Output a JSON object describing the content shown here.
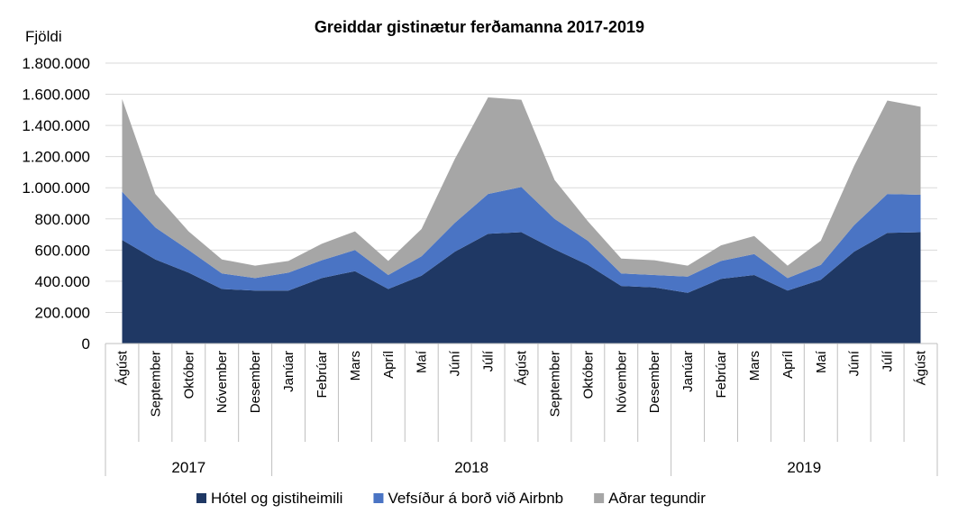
{
  "chart_data": {
    "type": "area",
    "stacked": true,
    "title": "Greiddar gistinætur ferðamanna 2017-2019",
    "ylabel": "Fjöldi",
    "xlabel": "",
    "ylim": [
      0,
      1800000
    ],
    "y_ticks": [
      {
        "value": 0,
        "label": "0"
      },
      {
        "value": 200000,
        "label": "200.000"
      },
      {
        "value": 400000,
        "label": "400.000"
      },
      {
        "value": 600000,
        "label": "600.000"
      },
      {
        "value": 800000,
        "label": "800.000"
      },
      {
        "value": 1000000,
        "label": "1.000.000"
      },
      {
        "value": 1200000,
        "label": "1.200.000"
      },
      {
        "value": 1400000,
        "label": "1.400.000"
      },
      {
        "value": 1600000,
        "label": "1.600.000"
      },
      {
        "value": 1800000,
        "label": "1.800.000"
      }
    ],
    "grid": true,
    "legend_position": "bottom",
    "categories": [
      "Ágúst",
      "September",
      "Október",
      "Nóvember",
      "Desember",
      "Janúar",
      "Febrúar",
      "Mars",
      "Apríl",
      "Maí",
      "Júní",
      "Júlí",
      "Ágúst",
      "September",
      "Október",
      "Nóvember",
      "Desember",
      "Janúar",
      "Febrúar",
      "Mars",
      "Apríl",
      "Maí",
      "Júní",
      "Júlí",
      "Ágúst"
    ],
    "year_groups": [
      {
        "label": "2017",
        "start": 0,
        "end": 4
      },
      {
        "label": "2018",
        "start": 5,
        "end": 16
      },
      {
        "label": "2019",
        "start": 17,
        "end": 24
      }
    ],
    "series": [
      {
        "name": "Hótel og gistiheimili",
        "color": "#1f3864",
        "values": [
          665000,
          540000,
          455000,
          350000,
          340000,
          340000,
          420000,
          465000,
          350000,
          435000,
          590000,
          705000,
          715000,
          605000,
          505000,
          370000,
          360000,
          325000,
          415000,
          440000,
          340000,
          410000,
          590000,
          710000,
          715000
        ]
      },
      {
        "name": "Vefsíður á borð við Airbnb",
        "color": "#4a74c4",
        "values": [
          310000,
          205000,
          145000,
          100000,
          80000,
          115000,
          115000,
          135000,
          90000,
          125000,
          185000,
          255000,
          290000,
          195000,
          155000,
          80000,
          80000,
          105000,
          115000,
          135000,
          80000,
          95000,
          170000,
          250000,
          240000
        ]
      },
      {
        "name": "Aðrar tegundir",
        "color": "#a6a6a6",
        "values": [
          595000,
          215000,
          120000,
          90000,
          80000,
          75000,
          105000,
          120000,
          90000,
          175000,
          410000,
          620000,
          560000,
          250000,
          125000,
          95000,
          95000,
          70000,
          100000,
          115000,
          80000,
          155000,
          380000,
          600000,
          565000
        ]
      }
    ]
  }
}
